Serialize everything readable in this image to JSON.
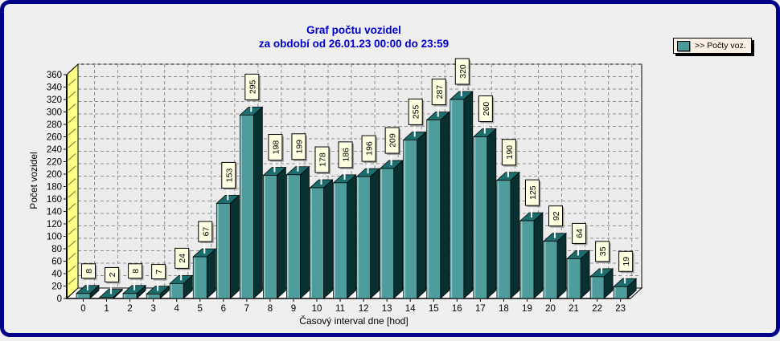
{
  "window": {
    "background": "#EFEFEF",
    "border_color": "#000087"
  },
  "title": {
    "line1": "Graf počtu vozidel",
    "line2": "za období od 26.01.23 00:00 do 23:59",
    "color": "#0000CD"
  },
  "legend": {
    "label": ">> Počty voz.",
    "swatch_color": "#4D9999",
    "background": "#F9EFE4",
    "position": "top-right"
  },
  "chart_data": {
    "type": "bar",
    "title": "Graf počtu vozidel",
    "subtitle": "za období od 26.01.23 00:00 do 23:59",
    "xlabel": "Časový interval dne [hod]",
    "ylabel": "Počet vozidel",
    "series_name": ">> Počty voz.",
    "categories": [
      "0",
      "1",
      "2",
      "3",
      "4",
      "5",
      "6",
      "7",
      "8",
      "9",
      "10",
      "11",
      "12",
      "13",
      "14",
      "15",
      "16",
      "17",
      "18",
      "19",
      "20",
      "21",
      "22",
      "23"
    ],
    "values": [
      8,
      2,
      8,
      7,
      24,
      67,
      153,
      295,
      198,
      199,
      178,
      186,
      196,
      209,
      255,
      287,
      320,
      260,
      190,
      125,
      92,
      64,
      35,
      19
    ],
    "ylim": [
      0,
      360
    ],
    "y_tick_step": 20,
    "grid": true,
    "grid_style": "dashed",
    "style": "3d-bar",
    "colors": {
      "bar_front": "#4E9C9C",
      "bar_highlight": "#8FC7C7",
      "bar_top": "#1C6D6D",
      "bar_side": "#083030",
      "back_wall": "#ECECEC",
      "left_wall": "#FFFF87",
      "floor": "#FFFFFF",
      "grid": "#909090",
      "value_label_box": "#FFFFE2",
      "value_label_shadow": "#9E9E9E",
      "axis_text": "#000000"
    }
  }
}
